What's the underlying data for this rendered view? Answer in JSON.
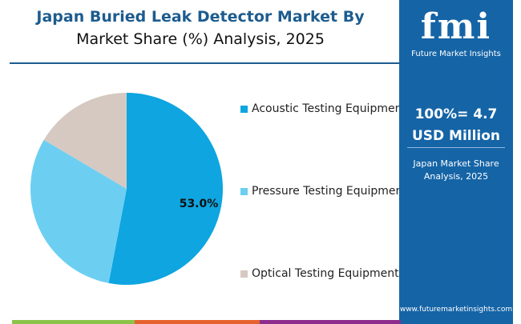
{
  "header": {
    "title": "Japan Buried Leak Detector Market By",
    "subtitle": "Market Share (%) Analysis, 2025"
  },
  "panel": {
    "logo": "fmi",
    "logo_sub": "Future Market Insights",
    "total_line1": "100%= 4.7",
    "total_line2": "USD Million",
    "caption_line1": "Japan Market Share",
    "caption_line2": "Analysis, 2025",
    "url": "www.futuremarketinsights.com"
  },
  "chart_data": {
    "type": "pie",
    "title": "Japan Buried Leak Detector Market By Market Share (%) Analysis, 2025",
    "legend_position": "right",
    "slices": [
      {
        "label": "Acoustic Testing Equipment",
        "value": 53.0,
        "color": "#0ea5e0",
        "data_label": "53.0%"
      },
      {
        "label": "Pressure Testing Equipment",
        "value": 30.5,
        "color": "#6ccff2",
        "data_label": ""
      },
      {
        "label": "Optical Testing Equipment",
        "value": 16.5,
        "color": "#d5c9c2",
        "data_label": ""
      }
    ]
  }
}
